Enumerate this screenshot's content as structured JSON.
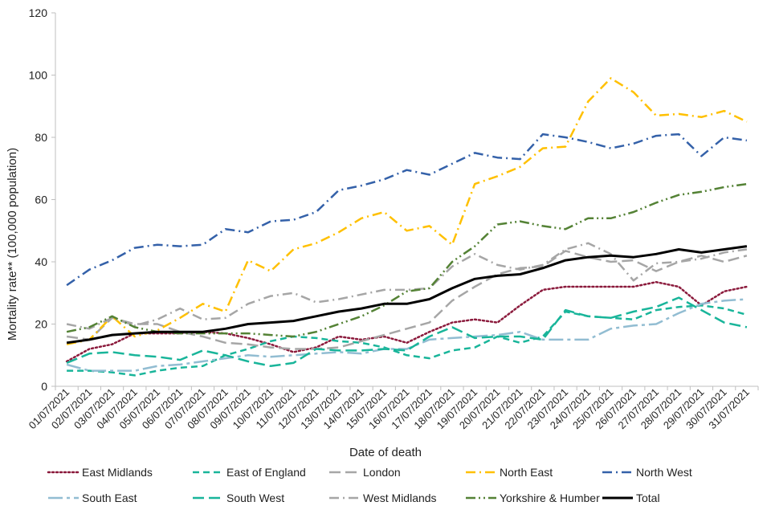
{
  "chart_data": {
    "type": "line",
    "title": "",
    "xlabel": "Date of death",
    "ylabel": "Mortality rate** (100,000 population)",
    "ylim": [
      0,
      120
    ],
    "yticks": [
      "0",
      "20",
      "40",
      "60",
      "80",
      "100",
      "120"
    ],
    "grid": false,
    "legend_position": "bottom",
    "categories": [
      "01/07/2021",
      "02/07/2021",
      "03/07/2021",
      "04/07/2021",
      "05/07/2021",
      "06/07/2021",
      "07/07/2021",
      "08/07/2021",
      "09/07/2021",
      "10/07/2021",
      "11/07/2021",
      "12/07/2021",
      "13/07/2021",
      "14/07/2021",
      "15/07/2021",
      "16/07/2021",
      "17/07/2021",
      "18/07/2021",
      "19/07/2021",
      "20/07/2021",
      "21/07/2021",
      "22/07/2021",
      "23/07/2021",
      "24/07/2021",
      "25/07/2021",
      "26/07/2021",
      "27/07/2021",
      "28/07/2021",
      "29/07/2021",
      "30/07/2021",
      "31/07/2021"
    ],
    "series": [
      {
        "name": "East Midlands",
        "color": "#8B1A3C",
        "dash": "dot",
        "values": [
          8,
          12,
          13.5,
          17,
          17,
          17,
          17.5,
          17,
          15.5,
          13.5,
          11,
          12.5,
          16,
          15,
          16,
          14,
          17.5,
          20.5,
          21.5,
          20.5,
          26,
          31,
          32,
          32,
          32,
          32,
          33.5,
          32,
          26,
          30.5,
          32
        ]
      },
      {
        "name": "East of England",
        "color": "#19B59A",
        "dash": "dash",
        "values": [
          5,
          5,
          4.5,
          3.5,
          5,
          6,
          6.5,
          10,
          12,
          14.5,
          16,
          15.5,
          14.5,
          14,
          12.5,
          10,
          9,
          11.5,
          12.5,
          16,
          14,
          16,
          24,
          22.5,
          22,
          21.5,
          24.5,
          25.5,
          26,
          25,
          23
        ]
      },
      {
        "name": "London",
        "color": "#A6A6A6",
        "dash": "longdash",
        "values": [
          16,
          15,
          22,
          20,
          20,
          17.5,
          16,
          14,
          13.5,
          12.5,
          12,
          12,
          12.5,
          14.5,
          16.5,
          18.5,
          20.5,
          27.5,
          32,
          36,
          38,
          38.5,
          43.5,
          41.5,
          40,
          40.5,
          37,
          40,
          42,
          40,
          42
        ]
      },
      {
        "name": "North East",
        "color": "#FFC000",
        "dash": "dashdot",
        "values": [
          13.5,
          15,
          22.5,
          16,
          18,
          22,
          26.5,
          24,
          40.5,
          37,
          44,
          46,
          49.5,
          54,
          56,
          50,
          51.5,
          45.5,
          65,
          67.5,
          70.5,
          76.5,
          77,
          91.5,
          99,
          94.5,
          87,
          87.5,
          86.5,
          88.5,
          85
        ]
      },
      {
        "name": "North West",
        "color": "#3461A9",
        "dash": "dashdot",
        "values": [
          32.5,
          37.5,
          40.5,
          44.5,
          45.5,
          45,
          45.5,
          50.5,
          49.5,
          53,
          53.5,
          56,
          63,
          64.5,
          66.5,
          69.5,
          68,
          71.5,
          75,
          73.5,
          73,
          81,
          80,
          78.5,
          76.5,
          78,
          80.5,
          81,
          74,
          80,
          79
        ]
      },
      {
        "name": "South East",
        "color": "#92BDD2",
        "dash": "longdashdot",
        "values": [
          7,
          5,
          5,
          5,
          6.5,
          7,
          8,
          9,
          10,
          9.5,
          10,
          10.5,
          11,
          10.5,
          12,
          12,
          15,
          15.5,
          16,
          16.5,
          17.5,
          15,
          15,
          15,
          18.5,
          19.5,
          20,
          23.5,
          26.5,
          27.5,
          28
        ]
      },
      {
        "name": "South West",
        "color": "#19B59A",
        "dash": "longdash",
        "values": [
          7.5,
          10.5,
          11,
          10,
          9.5,
          8.5,
          11.5,
          10,
          8,
          6.5,
          7.5,
          12,
          11.5,
          11.5,
          12,
          11.5,
          16,
          19,
          15.5,
          16,
          16,
          15,
          24.5,
          22.5,
          22,
          24,
          25.5,
          28.5,
          24.5,
          20.5,
          19
        ]
      },
      {
        "name": "West Midlands",
        "color": "#A6A6A6",
        "dash": "dashdot",
        "values": [
          20,
          18.5,
          22,
          19.5,
          21.5,
          25,
          21.5,
          22,
          26.5,
          29,
          30,
          27,
          28,
          29.5,
          31,
          31,
          31.5,
          38.5,
          42.5,
          39,
          37.5,
          39,
          44,
          46,
          42.5,
          34,
          39.5,
          40,
          41,
          43,
          44
        ]
      },
      {
        "name": "Yorkshire & Humber",
        "color": "#548235",
        "dash": "dashdotdot",
        "values": [
          17.5,
          19,
          22.5,
          19,
          17.5,
          17,
          17,
          17,
          17,
          16.5,
          16,
          17.5,
          20,
          22.5,
          26,
          30.5,
          31.5,
          40,
          45,
          52,
          53,
          51.5,
          50.5,
          54,
          54,
          56,
          59,
          61.5,
          62.5,
          64,
          65
        ]
      },
      {
        "name": "Total",
        "color": "#000000",
        "dash": "solid",
        "values": [
          14,
          15,
          16.5,
          17,
          17.5,
          17.5,
          17.5,
          18.5,
          20,
          20.5,
          21,
          22.5,
          24,
          25,
          26.5,
          26.5,
          28,
          31.5,
          34.5,
          35.5,
          36,
          38,
          40.5,
          41.5,
          42,
          41.5,
          42.5,
          44,
          43,
          44,
          45
        ]
      }
    ]
  }
}
